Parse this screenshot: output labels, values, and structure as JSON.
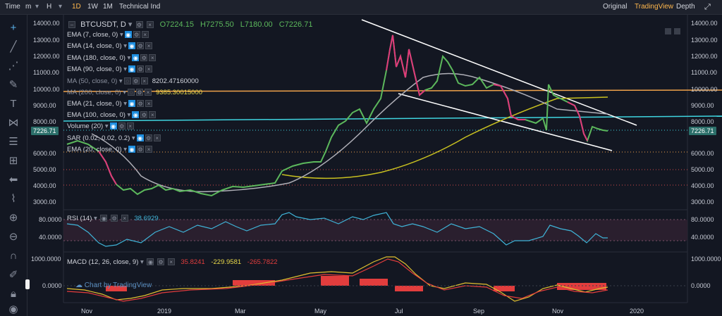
{
  "toolbar": {
    "time_label": "Time",
    "minute_label": "m",
    "hour_label": "H",
    "intervals": [
      "1D",
      "1W",
      "1M"
    ],
    "technical_label": "Technical Ind",
    "right_tabs": [
      "Original",
      "TradingView",
      "Depth"
    ]
  },
  "legend": {
    "symbol": "BTCUSDT, D",
    "open": "O7224.15",
    "high": "H7275.50",
    "low": "L7180.00",
    "close": "C7226.71"
  },
  "indicators": [
    {
      "label": "EMA (7, close, 0)",
      "value": ""
    },
    {
      "label": "EMA (14, close, 0)",
      "value": ""
    },
    {
      "label": "EMA (180, close, 0)",
      "value": ""
    },
    {
      "label": "EMA (90, close, 0)",
      "value": ""
    },
    {
      "label": "MA (50, close, 0)",
      "value": "8202.47160000"
    },
    {
      "label": "MA (200, close, 0)",
      "value": "9385.30015000"
    },
    {
      "label": "EMA (21, close, 0)",
      "value": ""
    },
    {
      "label": "EMA (100, close, 0)",
      "value": ""
    },
    {
      "label": "Volume (20)",
      "value": ""
    },
    {
      "label": "SAR (0.02, 0.02, 0.2)",
      "value": ""
    },
    {
      "label": "EMA (20, close, 0)",
      "value": ""
    }
  ],
  "price_axis_left": [
    "14000.00",
    "13000.00",
    "12000.00",
    "11000.00",
    "10000.00",
    "9000.00",
    "8000.00",
    "6000.00",
    "5000.00",
    "4000.00",
    "3000.00"
  ],
  "price_axis_right": [
    "14000.00",
    "13000.00",
    "12000.00",
    "11000.00",
    "10000.00",
    "9000.00",
    "8000.00",
    "6000.00",
    "5000.00",
    "4000.00",
    "3000.00"
  ],
  "current_price": "7226.71",
  "rsi": {
    "label": "RSI (14)",
    "value": "38.6929",
    "axis": [
      "80.0000",
      "40.0000"
    ]
  },
  "macd": {
    "label": "MACD (12, 26, close, 9)",
    "v1": "35.8241",
    "v2": "-229.9581",
    "v3": "-265.7822",
    "axis": [
      "1000.0000",
      "0.0000"
    ]
  },
  "watermark": "Chart by TradingView",
  "x_axis": [
    "Nov",
    "2019",
    "Mar",
    "May",
    "Jul",
    "Sep",
    "Nov",
    "2020"
  ],
  "colors": {
    "accent": "#ffb74d",
    "up": "#5cb85c",
    "down": "#e0397a",
    "cyan": "#3fd5e0",
    "orange": "#f0a24a"
  }
}
